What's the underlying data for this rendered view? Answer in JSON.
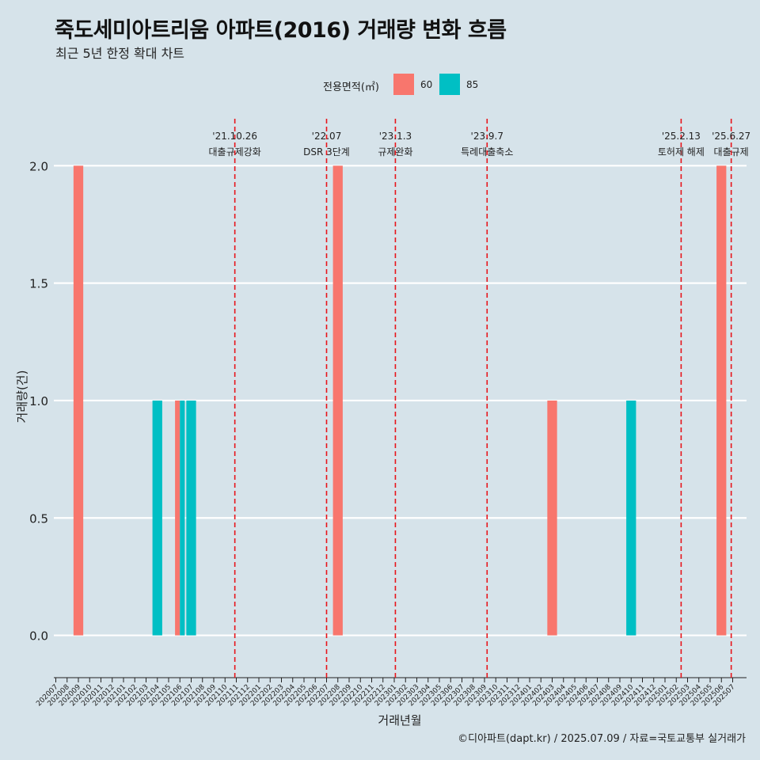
{
  "header": {
    "title": "죽도세미아트리움 아파트(2016) 거래량 변화 흐름",
    "subtitle": "최근 5년 한정 확대 차트"
  },
  "caption": "©디아파트(dapt.kr) / 2025.07.09 / 자료=국토교통부 실거래가",
  "legend": {
    "title": "전용면적(㎡)",
    "items": [
      {
        "label": "60",
        "color": "#f8766d"
      },
      {
        "label": "85",
        "color": "#00bfc4"
      }
    ]
  },
  "chart_data": {
    "type": "bar",
    "title": "죽도세미아트리움 아파트(2016) 거래량 변화 흐름",
    "subtitle": "최근 5년 한정 확대 차트",
    "xlabel": "거래년월",
    "ylabel": "거래량(건)",
    "ylim": [
      -0.17,
      2.2
    ],
    "yticks": [
      "0.0",
      "0.5",
      "1.0",
      "1.5",
      "2.0"
    ],
    "grid": true,
    "legend_position": "top",
    "categories": [
      "202007",
      "202008",
      "202009",
      "202010",
      "202011",
      "202012",
      "202101",
      "202102",
      "202103",
      "202104",
      "202105",
      "202106",
      "202107",
      "202108",
      "202109",
      "202110",
      "202111",
      "202112",
      "202201",
      "202202",
      "202203",
      "202204",
      "202205",
      "202206",
      "202207",
      "202208",
      "202209",
      "202210",
      "202211",
      "202212",
      "202301",
      "202302",
      "202303",
      "202304",
      "202305",
      "202306",
      "202307",
      "202308",
      "202309",
      "202310",
      "202311",
      "202312",
      "202401",
      "202402",
      "202403",
      "202404",
      "202405",
      "202406",
      "202407",
      "202408",
      "202409",
      "202410",
      "202411",
      "202412",
      "202501",
      "202502",
      "202503",
      "202504",
      "202505",
      "202506",
      "202507"
    ],
    "bars": [
      {
        "month": "202009",
        "series": "60",
        "value": 2
      },
      {
        "month": "202104",
        "series": "85",
        "value": 1
      },
      {
        "month": "202106",
        "series": "60",
        "value": 1
      },
      {
        "month": "202106",
        "series": "85",
        "value": 1
      },
      {
        "month": "202107",
        "series": "85",
        "value": 1
      },
      {
        "month": "202208",
        "series": "60",
        "value": 2
      },
      {
        "month": "202403",
        "series": "60",
        "value": 1
      },
      {
        "month": "202410",
        "series": "85",
        "value": 1
      },
      {
        "month": "202506",
        "series": "60",
        "value": 2
      }
    ],
    "events": [
      {
        "date": "'21.10.26",
        "label": "대출규제강화",
        "month": "202110",
        "offset": 0.87
      },
      {
        "date": "'22.07",
        "label": "DSR 3단계",
        "month": "202207",
        "offset": 0.0
      },
      {
        "date": "'23.1.3",
        "label": "규제완화",
        "month": "202301",
        "offset": 0.1
      },
      {
        "date": "'23.9.7",
        "label": "특례대출축소",
        "month": "202309",
        "offset": 0.23
      },
      {
        "date": "'25.2.13",
        "label": "토허제 해제",
        "month": "202502",
        "offset": 0.43
      },
      {
        "date": "'25.6.27",
        "label": "대출규제",
        "month": "202506",
        "offset": 0.87
      }
    ],
    "series_colors": {
      "60": "#f8766d",
      "85": "#00bfc4"
    },
    "event_line_color": "#e8141a"
  }
}
